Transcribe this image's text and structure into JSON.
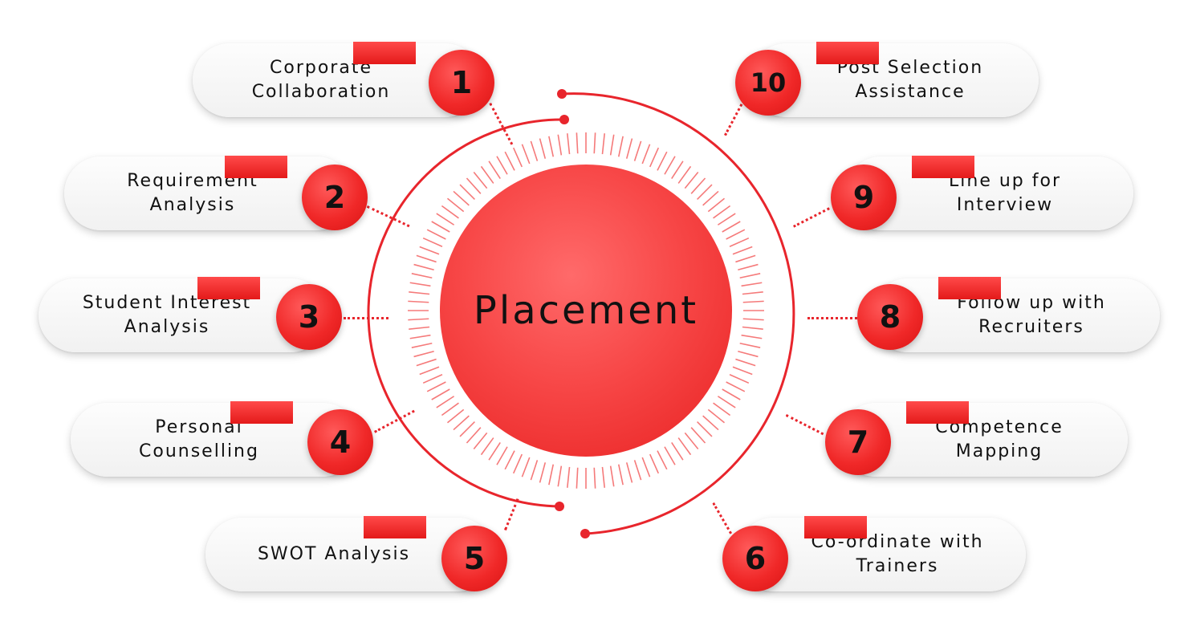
{
  "center": {
    "label": "Placement"
  },
  "colors": {
    "accent": "#f02828",
    "accent_light": "#ff5a5a",
    "text": "#111111",
    "pill": "#f4f4f4"
  },
  "steps": [
    {
      "number": "1",
      "lines": [
        "Corporate",
        "Collaboration"
      ]
    },
    {
      "number": "2",
      "lines": [
        "Requirement",
        "Analysis"
      ]
    },
    {
      "number": "3",
      "lines": [
        "Student Interest",
        "Analysis"
      ]
    },
    {
      "number": "4",
      "lines": [
        "Personal",
        "Counselling"
      ]
    },
    {
      "number": "5",
      "lines": [
        "SWOT Analysis"
      ]
    },
    {
      "number": "6",
      "lines": [
        "Co-ordinate with",
        "Trainers"
      ]
    },
    {
      "number": "7",
      "lines": [
        "Competence",
        "Mapping"
      ]
    },
    {
      "number": "8",
      "lines": [
        "Follow up with",
        "Recruiters"
      ]
    },
    {
      "number": "9",
      "lines": [
        "Line up for",
        "Interview"
      ]
    },
    {
      "number": "10",
      "lines": [
        "Post Selection",
        "Assistance"
      ]
    }
  ]
}
